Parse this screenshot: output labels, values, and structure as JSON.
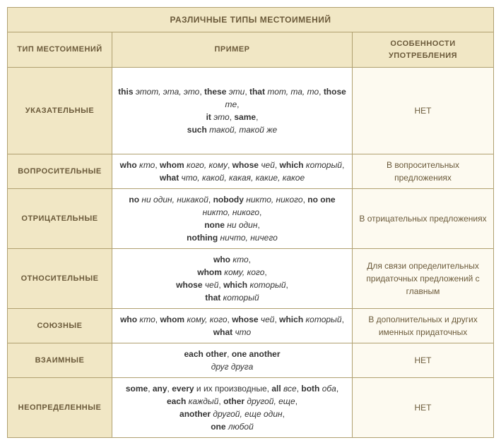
{
  "title": "РАЗЛИЧНЫЕ ТИПЫ МЕСТОИМЕНИЙ",
  "headers": {
    "type": "ТИП МЕСТОИМЕНИЙ",
    "example": "ПРИМЕР",
    "usage": "ОСОБЕННОСТИ УПОТРЕБЛЕНИЯ"
  },
  "rows": [
    {
      "type": "УКАЗАТЕЛЬНЫЕ",
      "example": "<span class='b'>this</span> <span class='i'>этот, эта, это</span>, <span class='b'>these</span> <span class='i'>эти</span>, <span class='b'>that</span> <span class='i'>тот, та, то</span>, <span class='b'>those</span> <span class='i'>те</span>,<br><span class='b'>it</span> <span class='i'>это</span>, <span class='b'>same</span>,<br><span class='b'>such</span> <span class='i'>такой, такой же</span>",
      "usage": "НЕТ"
    },
    {
      "type": "ВОПРОСИТЕЛЬНЫЕ",
      "example": "<span class='b'>who</span> <span class='i'>кто</span>, <span class='b'>whom</span> <span class='i'>кого, кому</span>, <span class='b'>whose</span> <span class='i'>чей</span>, <span class='b'>which</span> <span class='i'>который</span>, <span class='b'>what</span> <span class='i'>что, какой, какая, какие, какое</span>",
      "usage": "В вопросительных предложениях"
    },
    {
      "type": "ОТРИЦАТЕЛЬНЫЕ",
      "example": "<span class='b'>no</span> <span class='i'>ни один, никакой</span>, <span class='b'>nobody</span> <span class='i'>никто, никого</span>, <span class='b'>no one</span> <span class='i'>никто, никого</span>,<br><span class='b'>none</span> <span class='i'>ни один</span>,<br><span class='b'>nothing</span> <span class='i'>ничто, ничего</span>",
      "usage": "В отрицательных предложениях"
    },
    {
      "type": "ОТНОСИТЕЛЬНЫЕ",
      "example": "<span class='b'>who</span> <span class='i'>кто</span>,<br><span class='b'>whom</span> <span class='i'>кому, кого</span>,<br><span class='b'>whose</span> <span class='i'>чей</span>, <span class='b'>which</span> <span class='i'>который</span>,<br><span class='b'>that</span> <span class='i'>который</span>",
      "usage": "Для связи определительных придаточных предложений с главным"
    },
    {
      "type": "СОЮЗНЫЕ",
      "example": "<span class='b'>who</span> <span class='i'>кто</span>, <span class='b'>whom</span> <span class='i'>кому, кого</span>, <span class='b'>whose</span> <span class='i'>чей</span>, <span class='b'>which</span> <span class='i'>который</span>,<br><span class='b'>what</span> <span class='i'>что</span>",
      "usage": "В дополнительных и других именных придаточных"
    },
    {
      "type": "ВЗАИМНЫЕ",
      "example": "<span class='b'>each other</span>, <span class='b'>one another</span><br><span class='i'>друг друга</span>",
      "usage": "НЕТ"
    },
    {
      "type": "НЕОПРЕДЕЛЕННЫЕ",
      "example": "<span class='b'>some</span>, <span class='b'>any</span>, <span class='b'>every</span> и их производные, <span class='b'>all</span> <span class='i'>все</span>, <span class='b'>both</span> <span class='i'>оба</span>,<br><span class='b'>each</span> <span class='i'>каждый</span>, <span class='b'>other</span> <span class='i'>другой, еще</span>,<br><span class='b'>another</span> <span class='i'>другой, еще один</span>,<br><span class='b'>one</span> <span class='i'>любой</span>",
      "usage": "НЕТ"
    }
  ],
  "columnWidths": {
    "type": 148,
    "example": 340,
    "usage": 200
  },
  "colors": {
    "header_bg": "#f1e7c5",
    "header_text": "#6b5a3a",
    "usage_bg": "#fdfaf0",
    "example_bg": "#ffffff",
    "border": "#b0a070"
  }
}
